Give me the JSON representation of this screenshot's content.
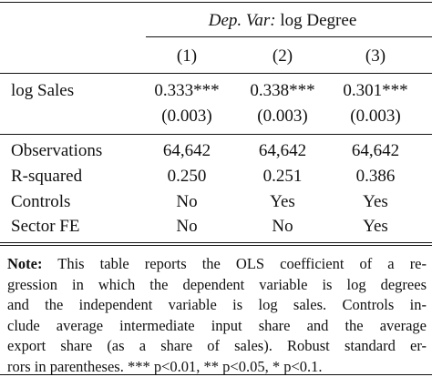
{
  "header": {
    "dep_var_label": "Dep. Var:",
    "dep_var": "log Degree",
    "columns": [
      "(1)",
      "(2)",
      "(3)"
    ]
  },
  "table": {
    "rows": [
      [
        "log Sales",
        "0.333***",
        "0.338***",
        "0.301***"
      ],
      [
        "",
        "(0.003)",
        "(0.003)",
        "(0.003)"
      ],
      [
        "Observations",
        "64,642",
        "64,642",
        "64,642"
      ],
      [
        "R-squared",
        "0.250",
        "0.251",
        "0.386"
      ],
      [
        "Controls",
        "No",
        "Yes",
        "Yes"
      ],
      [
        "Sector FE",
        "No",
        "No",
        "Yes"
      ]
    ]
  },
  "note": {
    "label": "Note:",
    "lines": [
      "This table reports the OLS coefficient of a re-",
      "gression in which the dependent variable is log degrees",
      "and the independent variable is log sales. Controls in-",
      "clude average intermediate input share and the average",
      "export share (as a share of sales). Robust standard er-",
      "rors in parentheses. *** p<0.01, ** p<0.05, * p<0.1."
    ]
  }
}
